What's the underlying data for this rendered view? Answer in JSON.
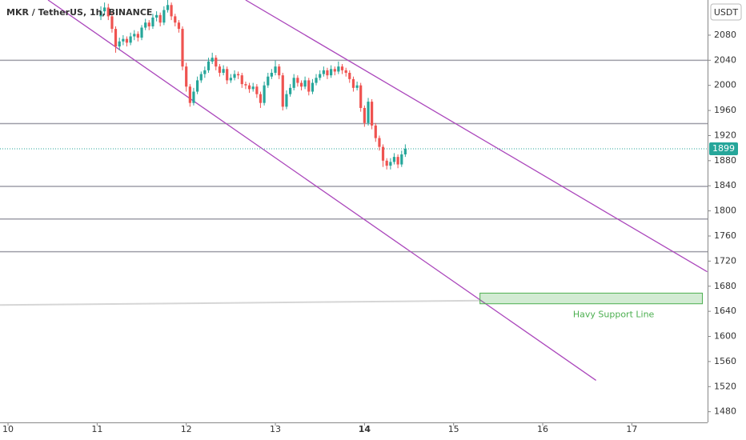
{
  "chart_data": {
    "type": "candlestick",
    "title": "MKR / TetherUS, 1h, BINANCE",
    "y_axis_label": "USDT",
    "x": [
      11.042,
      11.083,
      11.125,
      11.167,
      11.208,
      11.25,
      11.292,
      11.333,
      11.375,
      11.417,
      11.458,
      11.5,
      11.542,
      11.583,
      11.625,
      11.667,
      11.708,
      11.75,
      11.792,
      11.833,
      11.875,
      11.917,
      11.958,
      12,
      12.042,
      12.083,
      12.125,
      12.167,
      12.208,
      12.25,
      12.292,
      12.333,
      12.375,
      12.417,
      12.458,
      12.5,
      12.542,
      12.583,
      12.625,
      12.667,
      12.708,
      12.75,
      12.792,
      12.833,
      12.875,
      12.917,
      12.958,
      13,
      13.042,
      13.083,
      13.125,
      13.167,
      13.208,
      13.25,
      13.292,
      13.333,
      13.375,
      13.417,
      13.458,
      13.5,
      13.542,
      13.583,
      13.625,
      13.667,
      13.708,
      13.75,
      13.792,
      13.833,
      13.875,
      13.917,
      13.958,
      14,
      14.042,
      14.083,
      14.125,
      14.167,
      14.208,
      14.25,
      14.292,
      14.333,
      14.375,
      14.417,
      14.458
    ],
    "open": [
      2110,
      2118,
      2124,
      2110,
      2090,
      2062,
      2070,
      2074,
      2068,
      2078,
      2082,
      2076,
      2092,
      2100,
      2094,
      2108,
      2112,
      2100,
      2120,
      2128,
      2110,
      2100,
      2090,
      2030,
      1998,
      1972,
      1990,
      2008,
      2018,
      2024,
      2038,
      2044,
      2030,
      2020,
      2026,
      2008,
      2012,
      2018,
      2016,
      2002,
      2000,
      1994,
      1998,
      1986,
      1972,
      2000,
      2014,
      2020,
      2030,
      2016,
      1966,
      1986,
      1996,
      2012,
      2004,
      1998,
      2008,
      1990,
      2004,
      2012,
      2018,
      2024,
      2016,
      2026,
      2022,
      2030,
      2024,
      2020,
      2010,
      1996,
      2000,
      1964,
      1940,
      1974,
      1936,
      1916,
      1902,
      1880,
      1872,
      1878,
      1886,
      1874,
      1890
    ],
    "high": [
      2126,
      2132,
      2130,
      2116,
      2094,
      2076,
      2080,
      2078,
      2084,
      2088,
      2086,
      2096,
      2106,
      2104,
      2114,
      2118,
      2116,
      2126,
      2136,
      2132,
      2114,
      2104,
      2094,
      2036,
      2002,
      1996,
      2014,
      2022,
      2030,
      2044,
      2052,
      2048,
      2034,
      2032,
      2030,
      2018,
      2024,
      2022,
      2020,
      2006,
      2004,
      2004,
      2002,
      1990,
      2006,
      2020,
      2026,
      2040,
      2034,
      2020,
      1992,
      2002,
      2018,
      2016,
      2008,
      2014,
      2012,
      2010,
      2018,
      2024,
      2030,
      2028,
      2032,
      2030,
      2038,
      2034,
      2028,
      2024,
      2014,
      2006,
      2004,
      1968,
      1980,
      1978,
      1940,
      1920,
      1906,
      1884,
      1884,
      1892,
      1890,
      1896,
      1906
    ],
    "low": [
      2104,
      2112,
      2104,
      2084,
      2052,
      2056,
      2064,
      2062,
      2064,
      2072,
      2070,
      2072,
      2088,
      2088,
      2090,
      2102,
      2094,
      2096,
      2116,
      2104,
      2094,
      2084,
      2024,
      1990,
      1966,
      1968,
      1986,
      2004,
      2012,
      2020,
      2034,
      2024,
      2014,
      2016,
      2002,
      2004,
      2008,
      2010,
      1996,
      1994,
      1988,
      1990,
      1980,
      1964,
      1968,
      1996,
      2010,
      2016,
      2010,
      1960,
      1962,
      1982,
      1992,
      1998,
      1992,
      1994,
      1984,
      1986,
      2000,
      2008,
      2014,
      2010,
      2012,
      2016,
      2018,
      2018,
      2014,
      2004,
      1990,
      1992,
      1958,
      1934,
      1936,
      1930,
      1910,
      1896,
      1870,
      1866,
      1866,
      1874,
      1868,
      1870,
      1886
    ],
    "close": [
      2118,
      2124,
      2110,
      2090,
      2062,
      2070,
      2074,
      2068,
      2078,
      2082,
      2076,
      2092,
      2100,
      2094,
      2108,
      2112,
      2100,
      2120,
      2128,
      2110,
      2100,
      2090,
      2030,
      1998,
      1972,
      1990,
      2008,
      2018,
      2024,
      2038,
      2044,
      2030,
      2020,
      2026,
      2008,
      2012,
      2018,
      2016,
      2002,
      2000,
      1994,
      1998,
      1986,
      1972,
      2000,
      2014,
      2020,
      2030,
      2016,
      1966,
      1986,
      1996,
      2012,
      2004,
      1998,
      2008,
      1990,
      2004,
      2012,
      2018,
      2024,
      2016,
      2026,
      2022,
      2030,
      2024,
      2020,
      2010,
      1996,
      2000,
      1964,
      1940,
      1974,
      1936,
      1916,
      1902,
      1880,
      1872,
      1878,
      1886,
      1874,
      1890,
      1899
    ],
    "up_color": "#26a69a",
    "down_color": "#ef5350",
    "last_price": 1899,
    "xlim": [
      9.91,
      17.85
    ],
    "ylim": [
      1463,
      2136
    ],
    "xticks": [
      10,
      11,
      12,
      13,
      14,
      15,
      16,
      17
    ],
    "yticks": [
      2080,
      2040,
      2000,
      1960,
      1920,
      1880,
      1840,
      1800,
      1760,
      1720,
      1680,
      1640,
      1600,
      1560,
      1520,
      1480
    ],
    "horizontal_lines": [
      2040,
      1939,
      1839,
      1787,
      1735
    ],
    "trendlines": [
      {
        "x": [
          12.666,
          17.846
        ],
        "y": [
          2136,
          1703
        ],
        "color": "#ab47bc"
      },
      {
        "x": [
          10.449,
          16.598
        ],
        "y": [
          2136,
          1530
        ],
        "color": "#ab47bc"
      },
      {
        "x": [
          9.91,
          15.296
        ],
        "y": [
          1650,
          1657
        ],
        "color": "#d6d6d6"
      }
    ],
    "zone": {
      "x": [
        15.296,
        17.792
      ],
      "y": [
        1669,
        1652
      ],
      "label": "Havy Support Line",
      "color": "#4caf50"
    }
  }
}
